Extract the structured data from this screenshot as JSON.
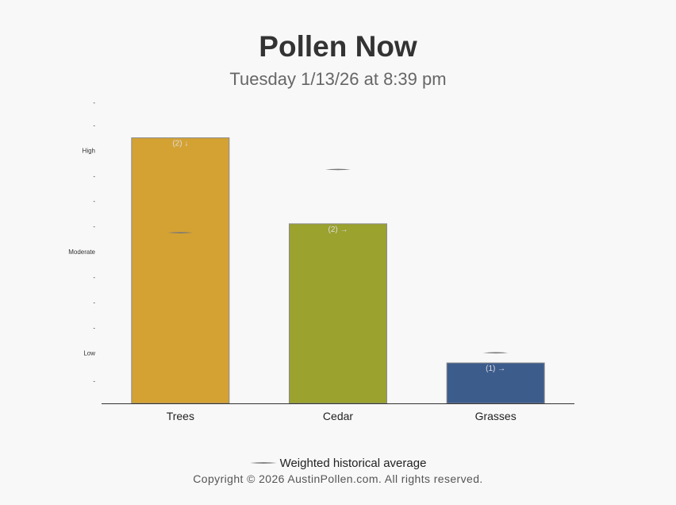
{
  "header": {
    "title": "Pollen Now",
    "subtitle": "Tuesday 1/13/26 at 8:39 pm"
  },
  "chart_data": {
    "type": "bar",
    "title": "Pollen Now",
    "subtitle": "Tuesday 1/13/26 at 8:39 pm",
    "categories": [
      "Trees",
      "Cedar",
      "Grasses"
    ],
    "values": [
      10.5,
      7.1,
      1.6
    ],
    "colors": [
      "#d4a233",
      "#9ba22e",
      "#3c5c8c"
    ],
    "bar_labels": [
      "(2) ↓",
      "(2) →",
      "(1) →"
    ],
    "historical_average": [
      6.75,
      9.25,
      2.0
    ],
    "ylim": [
      0,
      11.9
    ],
    "y_ticks": [
      {
        "value": 0.9,
        "label": "-"
      },
      {
        "value": 2.0,
        "label": "Low"
      },
      {
        "value": 3.0,
        "label": "-"
      },
      {
        "value": 4.0,
        "label": "-"
      },
      {
        "value": 5.0,
        "label": "-"
      },
      {
        "value": 6.0,
        "label": "Moderate"
      },
      {
        "value": 7.0,
        "label": "-"
      },
      {
        "value": 8.0,
        "label": "-"
      },
      {
        "value": 9.0,
        "label": "-"
      },
      {
        "value": 10.0,
        "label": "High"
      },
      {
        "value": 11.0,
        "label": "-"
      },
      {
        "value": 11.9,
        "label": "-"
      }
    ],
    "grid": false,
    "legend": {
      "position": "bottom",
      "label": "Weighted historical average"
    }
  },
  "footer": {
    "copyright": "Copyright © 2026 AustinPollen.com.  All rights reserved."
  }
}
